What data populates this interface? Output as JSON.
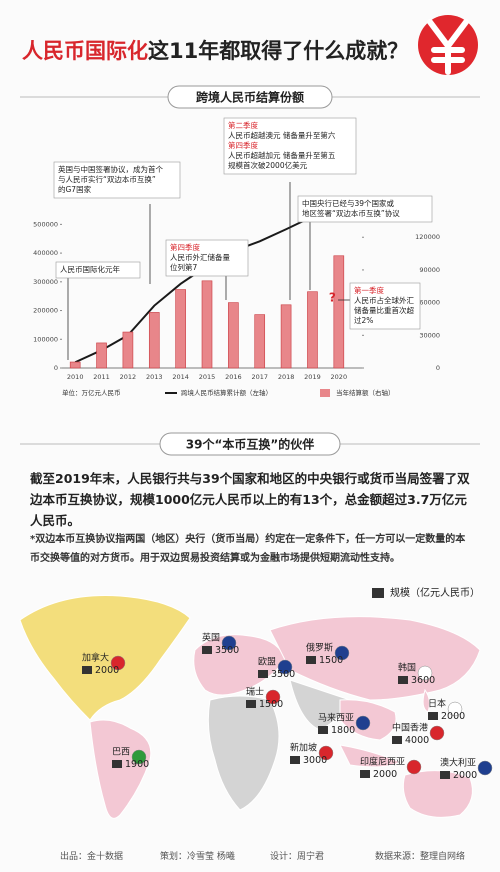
{
  "header": {
    "title_highlight": "人民币国际化",
    "title_rest": "这11年都取得了什么成就？"
  },
  "chart_data": {
    "type": "bar",
    "section_title": "跨境人民币结算份额",
    "unit_label": "单位：万亿元人民币",
    "categories": [
      "2010",
      "2011",
      "2012",
      "2013",
      "2014",
      "2015",
      "2016",
      "2017",
      "2018",
      "2019",
      "2020"
    ],
    "series": [
      {
        "name": "跨境人民币结算累计额（左轴）",
        "type": "line",
        "color": "#1a1a1a",
        "values": [
          20000,
          62000,
          114000,
          217000,
          293000,
          355000,
          407000,
          441000,
          483000,
          527000,
          null
        ]
      },
      {
        "name": "当年结算额（右轴）",
        "type": "bar",
        "axis": "y2",
        "color": "#e8868a",
        "values": [
          5500,
          23000,
          33000,
          51000,
          72000,
          80000,
          60000,
          49000,
          58000,
          70000,
          103000
        ]
      }
    ],
    "ylim": [
      0,
      550000
    ],
    "yticks": [
      0,
      100000,
      200000,
      300000,
      400000,
      500000
    ],
    "y2lim": [
      0,
      145000
    ],
    "y2ticks": [
      0,
      30000,
      60000,
      90000,
      120000
    ],
    "annotations": [
      {
        "blocks": [
          {
            "lines": [
              "人民币国际化元年"
            ]
          }
        ]
      },
      {
        "blocks": [
          {
            "lines": [
              "英国与中国签署协议，成为首个",
              "与人民币实行“双边本币互换”",
              "的G7国家"
            ]
          }
        ]
      },
      {
        "blocks": [
          {
            "heading": "第四季度",
            "lines": [
              "人民币外汇储备量",
              "位列第7"
            ]
          }
        ]
      },
      {
        "blocks": [
          {
            "heading": "第二季度",
            "lines": [
              "人民币超越澳元 储备量升至第六"
            ]
          },
          {
            "heading": "第四季度",
            "lines": [
              "人民币超越加元 储备量升至第五",
              "规模首次破2000亿美元"
            ]
          }
        ]
      },
      {
        "blocks": [
          {
            "lines": [
              "中国央行已经与39个国家或",
              "地区签署“双边本币互换”协议"
            ]
          }
        ]
      },
      {
        "blocks": [
          {
            "heading": "第一季度",
            "lines": [
              "人民币占全球外汇",
              "储备量比重首次超",
              "过2%"
            ]
          }
        ]
      }
    ],
    "marker": "?"
  },
  "partners": {
    "section_title": "39个“本币互换”的伙伴",
    "intro": "截至2019年末，人民银行共与39个国家和地区的中央银行或货币当局签署了双边本币互换协议，规模1000亿元人民币以上的有13个，总金额超过3.7万亿元人民币。",
    "note": "*双边本币互换协议指两国（地区）央行（货币当局）约定在一定条件下，任一方可以一定数量的本币交换等值的对方货币。用于双边贸易投资结算或为金融市场提供短期流动性支持。",
    "legend": "规模（亿元人民币）",
    "items": [
      {
        "name": "加拿大",
        "value": 2000
      },
      {
        "name": "英国",
        "value": 3500
      },
      {
        "name": "俄罗斯",
        "value": 1500
      },
      {
        "name": "欧盟",
        "value": 3500
      },
      {
        "name": "瑞士",
        "value": 1500
      },
      {
        "name": "韩国",
        "value": 3600
      },
      {
        "name": "日本",
        "value": 2000
      },
      {
        "name": "马来西亚",
        "value": 1800
      },
      {
        "name": "中国香港",
        "value": 4000
      },
      {
        "name": "新加坡",
        "value": 3000
      },
      {
        "name": "印度尼西亚",
        "value": 2000
      },
      {
        "name": "澳大利亚",
        "value": 2000
      },
      {
        "name": "巴西",
        "value": 1900
      }
    ]
  },
  "footer": [
    "出品：金十数据",
    "策划：冷雪莹 杨曦",
    "设计：周宁君",
    "数据来源：整理自网络"
  ]
}
